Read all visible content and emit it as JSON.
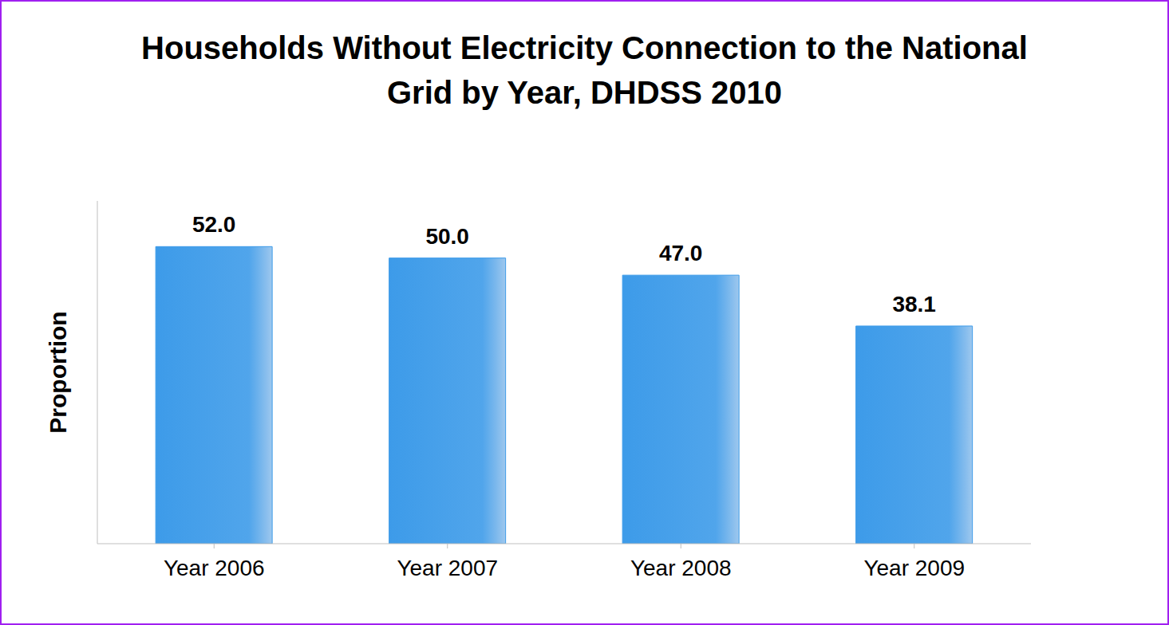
{
  "chart_data": {
    "type": "bar",
    "title": "Households Without Electricity Connection to the National Grid by Year, DHDSS 2010",
    "y_label": "Proportion",
    "categories": [
      "Year 2006",
      "Year 2007",
      "Year 2008",
      "Year 2009"
    ],
    "values": [
      52.0,
      50.0,
      47.0,
      38.1
    ],
    "value_labels": [
      "52.0",
      "50.0",
      "47.0",
      "38.1"
    ],
    "color": "#3d9be9",
    "ylim": [
      0,
      60
    ],
    "grid": false,
    "data_labels": true,
    "tick_labels": "x"
  }
}
